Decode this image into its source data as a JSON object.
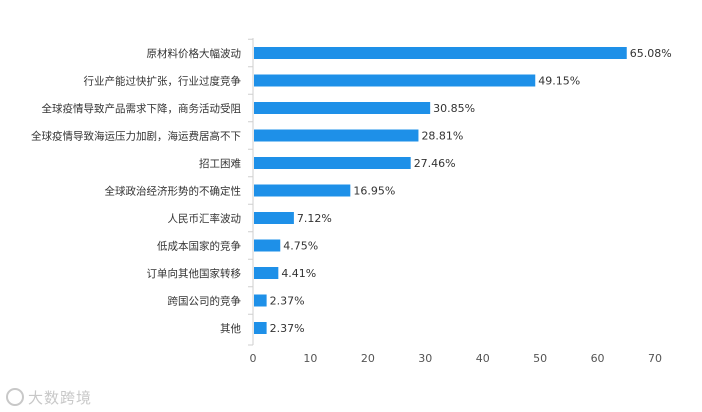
{
  "chart_data": {
    "type": "bar",
    "orientation": "horizontal",
    "categories": [
      "原材料价格大幅波动",
      "行业产能过快扩张，行业过度竞争",
      "全球疫情导致产品需求下降，商务活动受阻",
      "全球疫情导致海运压力加剧，海运费居高不下",
      "招工困难",
      "全球政治经济形势的不确定性",
      "人民币汇率波动",
      "低成本国家的竞争",
      "订单向其他国家转移",
      "跨国公司的竞争",
      "其他"
    ],
    "values": [
      65.08,
      49.15,
      30.85,
      28.81,
      27.46,
      16.95,
      7.12,
      4.75,
      4.41,
      2.37,
      2.37
    ],
    "value_labels": [
      "65.08%",
      "49.15%",
      "30.85%",
      "28.81%",
      "27.46%",
      "16.95%",
      "7.12%",
      "4.75%",
      "4.41%",
      "2.37%",
      "2.37%"
    ],
    "xlim": [
      0,
      70
    ],
    "x_ticks": [
      0,
      10,
      20,
      30,
      40,
      50,
      60,
      70
    ],
    "grid": false,
    "bar_color": "#1e90e8",
    "xlabel": "",
    "ylabel": ""
  },
  "watermark": {
    "text": "大数跨境",
    "icon": "logo-circle-icon"
  }
}
